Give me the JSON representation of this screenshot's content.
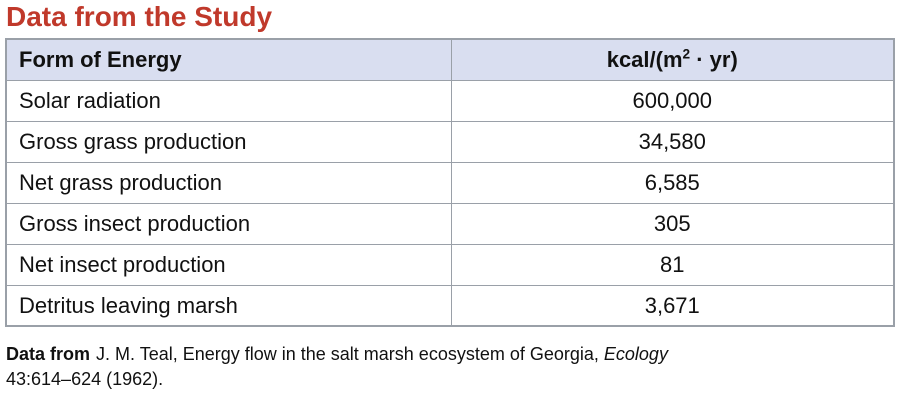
{
  "title": "Data from the Study",
  "colors": {
    "title_red": "#c0392b",
    "header_bg": "#d9def0",
    "border_gray": "#9aa0a8",
    "text": "#111111"
  },
  "header": {
    "col1": "Form of Energy",
    "col2_base": "kcal/(m",
    "col2_sup": "2",
    "col2_rest": " · yr)"
  },
  "chart_data": {
    "type": "table",
    "title": "Data from the Study",
    "columns": [
      "Form of Energy",
      "kcal/(m² · yr)"
    ],
    "rows": [
      {
        "label": "Solar radiation",
        "value": "600,000"
      },
      {
        "label": "Gross grass production",
        "value": "34,580"
      },
      {
        "label": "Net grass production",
        "value": "6,585"
      },
      {
        "label": "Gross insect production",
        "value": "305"
      },
      {
        "label": "Net insect production",
        "value": "81"
      },
      {
        "label": "Detritus leaving marsh",
        "value": "3,671"
      }
    ]
  },
  "footnote": {
    "lead": "Data from",
    "part1": "J. M. Teal, Energy flow in the salt marsh ecosystem of Georgia,",
    "journal": "Ecology",
    "part2": "43:614–624 (1962)."
  }
}
